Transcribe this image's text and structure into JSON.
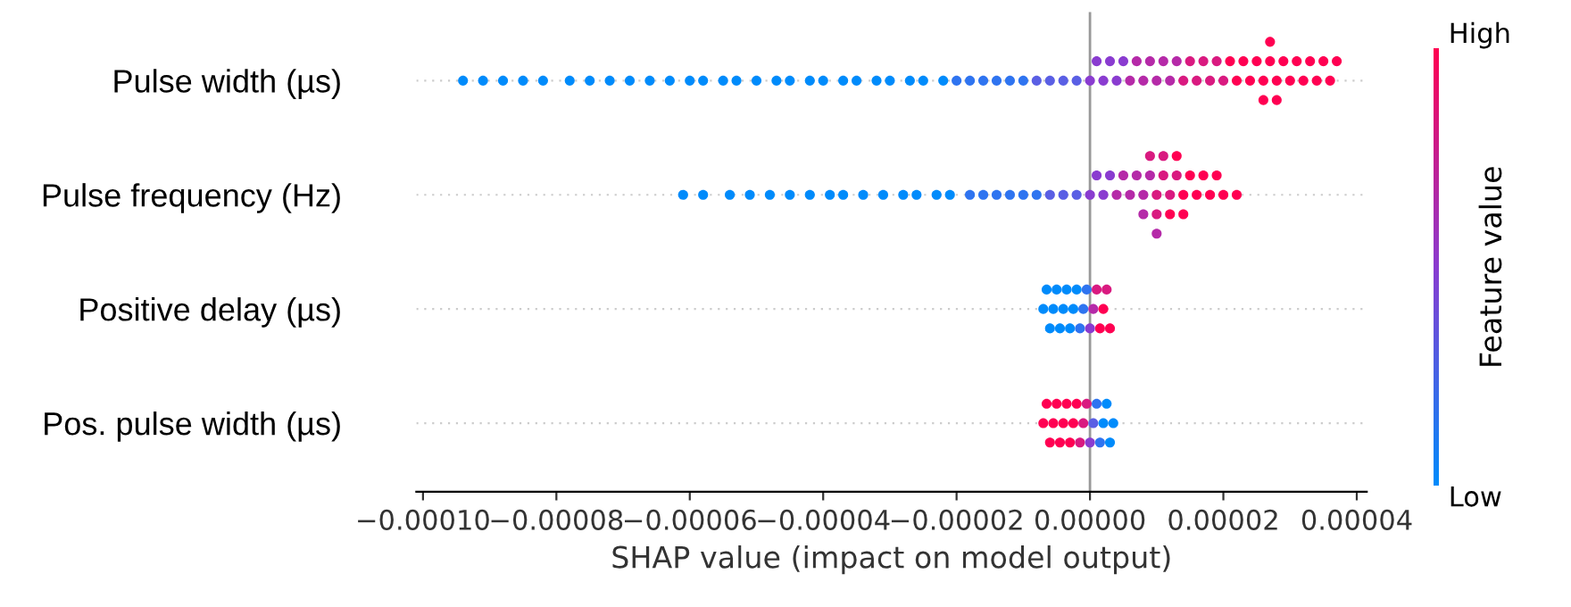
{
  "chart_data": {
    "type": "scatter",
    "orientation": "horizontal",
    "xlabel": "SHAP value (impact on model output)",
    "clabel": "Feature value",
    "categories": [
      "Pulse width (µs)",
      "Pulse frequency (Hz)",
      "Positive delay (µs)",
      "Pos. pulse width (µs)"
    ],
    "xlim": [
      -0.000101,
      4.15e-05
    ],
    "xticks": [
      {
        "value": -0.0001,
        "label": "−0.00010"
      },
      {
        "value": -8e-05,
        "label": "−0.00008"
      },
      {
        "value": -6e-05,
        "label": "−0.00006"
      },
      {
        "value": -4e-05,
        "label": "−0.00004"
      },
      {
        "value": -2e-05,
        "label": "−0.00002"
      },
      {
        "value": 0,
        "label": "0.00000"
      },
      {
        "value": 2e-05,
        "label": "0.00002"
      },
      {
        "value": 4e-05,
        "label": "0.00004"
      }
    ],
    "annotations": [
      "High",
      "Low"
    ],
    "grid": "y",
    "marker": "circle",
    "ref_lines": [
      {
        "axis": "x",
        "value": 0,
        "color": "#999999"
      }
    ],
    "series": [
      {
        "x": [
          "Pulse width (µs)",
          "Pulse width (µs)",
          "Pulse width (µs)",
          "Pulse width (µs)",
          "Pulse width (µs)",
          "Pulse width (µs)",
          "Pulse width (µs)",
          "Pulse width (µs)",
          "Pulse width (µs)",
          "Pulse width (µs)",
          "Pulse width (µs)",
          "Pulse width (µs)",
          "Pulse width (µs)",
          "Pulse width (µs)",
          "Pulse width (µs)",
          "Pulse width (µs)",
          "Pulse width (µs)",
          "Pulse width (µs)",
          "Pulse width (µs)",
          "Pulse width (µs)",
          "Pulse width (µs)",
          "Pulse width (µs)",
          "Pulse width (µs)",
          "Pulse width (µs)",
          "Pulse width (µs)",
          "Pulse width (µs)",
          "Pulse width (µs)",
          "Pulse width (µs)",
          "Pulse width (µs)",
          "Pulse width (µs)",
          "Pulse width (µs)",
          "Pulse width (µs)",
          "Pulse width (µs)",
          "Pulse width (µs)",
          "Pulse width (µs)",
          "Pulse width (µs)",
          "Pulse width (µs)",
          "Pulse width (µs)",
          "Pulse width (µs)",
          "Pulse width (µs)",
          "Pulse width (µs)",
          "Pulse width (µs)",
          "Pulse width (µs)",
          "Pulse width (µs)",
          "Pulse width (µs)",
          "Pulse width (µs)",
          "Pulse width (µs)",
          "Pulse width (µs)",
          "Pulse width (µs)",
          "Pulse width (µs)",
          "Pulse width (µs)",
          "Pulse width (µs)",
          "Pulse width (µs)",
          "Pulse width (µs)",
          "Pulse width (µs)",
          "Pulse width (µs)",
          "Pulse width (µs)",
          "Pulse width (µs)",
          "Pulse width (µs)",
          "Pulse width (µs)",
          "Pulse width (µs)",
          "Pulse width (µs)",
          "Pulse width (µs)",
          "Pulse width (µs)",
          "Pulse width (µs)",
          "Pulse width (µs)",
          "Pulse width (µs)",
          "Pulse width (µs)",
          "Pulse width (µs)",
          "Pulse width (µs)",
          "Pulse width (µs)",
          "Pulse width (µs)",
          "Pulse width (µs)",
          "Pulse width (µs)",
          "Pulse width (µs)",
          "Pulse width (µs)",
          "Pulse width (µs)",
          "Pulse width (µs)"
        ],
        "values": [
          -9.4e-05,
          -9.1e-05,
          -8.8e-05,
          -8.5e-05,
          -8.2e-05,
          -7.8e-05,
          -7.5e-05,
          -7.2e-05,
          -6.9e-05,
          -6.6e-05,
          -6.3e-05,
          -6e-05,
          -5.8e-05,
          -5.5e-05,
          -5.3e-05,
          -5e-05,
          -4.7e-05,
          -4.5e-05,
          -4.2e-05,
          -4e-05,
          -3.7e-05,
          -3.5e-05,
          -3.2e-05,
          -3e-05,
          -2.7e-05,
          -2.5e-05,
          -2.2e-05,
          -2e-05,
          -1.8e-05,
          -1.6e-05,
          -1.4e-05,
          -1.2e-05,
          -1e-05,
          -8e-06,
          -6e-06,
          -4e-06,
          -2e-06,
          0,
          1e-06,
          2e-06,
          3e-06,
          4e-06,
          5e-06,
          6e-06,
          7e-06,
          8e-06,
          9e-06,
          1e-05,
          1.1e-05,
          1.2e-05,
          1.3e-05,
          1.4e-05,
          1.5e-05,
          1.6e-05,
          1.7e-05,
          1.8e-05,
          1.9e-05,
          2e-05,
          2.1e-05,
          2.2e-05,
          2.3e-05,
          2.4e-05,
          2.5e-05,
          2.6e-05,
          2.6e-05,
          2.7e-05,
          2.7e-05,
          2.8e-05,
          2.8e-05,
          2.9e-05,
          3e-05,
          3.1e-05,
          3.2e-05,
          3.3e-05,
          3.4e-05,
          3.5e-05,
          3.6e-05,
          3.7e-05
        ],
        "colors": [
          "#008bfb",
          "#008bfb",
          "#008bfb",
          "#008bfb",
          "#008bfb",
          "#008bfb",
          "#008bfb",
          "#008bfb",
          "#008bfb",
          "#008bfb",
          "#008bfb",
          "#008bfb",
          "#008bfb",
          "#008bfb",
          "#008bfb",
          "#008bfb",
          "#008bfb",
          "#008bfb",
          "#008bfb",
          "#008bfb",
          "#008bfb",
          "#008bfb",
          "#008bfb",
          "#008bfb",
          "#008bfb",
          "#008bfb",
          "#008bfb",
          "#2f74f0",
          "#2f74f0",
          "#2f74f0",
          "#2f74f0",
          "#2f74f0",
          "#2f74f0",
          "#5a5fe4",
          "#5a5fe4",
          "#5a5fe4",
          "#5a5fe4",
          "#8a3cd0",
          "#8a3cd0",
          "#8a3cd0",
          "#8a3cd0",
          "#8a3cd0",
          "#8a3cd0",
          "#b52aa8",
          "#b52aa8",
          "#b52aa8",
          "#b52aa8",
          "#b52aa8",
          "#b52aa8",
          "#b52aa8",
          "#b52aa8",
          "#d91a80",
          "#d91a80",
          "#d91a80",
          "#d91a80",
          "#d91a80",
          "#d91a80",
          "#d91a80",
          "#ff0052",
          "#ff0052",
          "#ff0052",
          "#ff0052",
          "#ff0052",
          "#ff0052",
          "#ff0052",
          "#ff0052",
          "#ff0052",
          "#ff0052",
          "#ff0052",
          "#ff0052",
          "#ff0052",
          "#ff0052",
          "#ff0052",
          "#ff0052",
          "#ff0052",
          "#ff0052",
          "#ff0052",
          "#ff0052"
        ]
      },
      {
        "x": [
          "Pulse frequency (Hz)",
          "Pulse frequency (Hz)",
          "Pulse frequency (Hz)",
          "Pulse frequency (Hz)",
          "Pulse frequency (Hz)",
          "Pulse frequency (Hz)",
          "Pulse frequency (Hz)",
          "Pulse frequency (Hz)",
          "Pulse frequency (Hz)",
          "Pulse frequency (Hz)",
          "Pulse frequency (Hz)",
          "Pulse frequency (Hz)",
          "Pulse frequency (Hz)",
          "Pulse frequency (Hz)",
          "Pulse frequency (Hz)",
          "Pulse frequency (Hz)",
          "Pulse frequency (Hz)",
          "Pulse frequency (Hz)",
          "Pulse frequency (Hz)",
          "Pulse frequency (Hz)",
          "Pulse frequency (Hz)",
          "Pulse frequency (Hz)",
          "Pulse frequency (Hz)",
          "Pulse frequency (Hz)",
          "Pulse frequency (Hz)",
          "Pulse frequency (Hz)",
          "Pulse frequency (Hz)",
          "Pulse frequency (Hz)",
          "Pulse frequency (Hz)",
          "Pulse frequency (Hz)",
          "Pulse frequency (Hz)",
          "Pulse frequency (Hz)",
          "Pulse frequency (Hz)",
          "Pulse frequency (Hz)",
          "Pulse frequency (Hz)",
          "Pulse frequency (Hz)",
          "Pulse frequency (Hz)",
          "Pulse frequency (Hz)",
          "Pulse frequency (Hz)",
          "Pulse frequency (Hz)",
          "Pulse frequency (Hz)",
          "Pulse frequency (Hz)",
          "Pulse frequency (Hz)",
          "Pulse frequency (Hz)",
          "Pulse frequency (Hz)",
          "Pulse frequency (Hz)",
          "Pulse frequency (Hz)",
          "Pulse frequency (Hz)",
          "Pulse frequency (Hz)",
          "Pulse frequency (Hz)",
          "Pulse frequency (Hz)",
          "Pulse frequency (Hz)",
          "Pulse frequency (Hz)",
          "Pulse frequency (Hz)"
        ],
        "values": [
          -6.1e-05,
          -5.8e-05,
          -5.4e-05,
          -5.1e-05,
          -4.8e-05,
          -4.5e-05,
          -4.2e-05,
          -3.9e-05,
          -3.7e-05,
          -3.4e-05,
          -3.1e-05,
          -2.8e-05,
          -2.6e-05,
          -2.3e-05,
          -2.1e-05,
          -1.8e-05,
          -1.6e-05,
          -1.4e-05,
          -1.2e-05,
          -1e-05,
          -8e-06,
          -6e-06,
          -4e-06,
          -2e-06,
          0,
          1e-06,
          2e-06,
          3e-06,
          4e-06,
          5e-06,
          6e-06,
          7e-06,
          8e-06,
          8e-06,
          9e-06,
          9e-06,
          1e-05,
          1e-05,
          1.1e-05,
          1.1e-05,
          1.2e-05,
          1.2e-05,
          1.3e-05,
          1.3e-05,
          1.4e-05,
          1.4e-05,
          1.5e-05,
          1.6e-05,
          1.7e-05,
          1.8e-05,
          1.9e-05,
          2e-05,
          2.2e-05,
          1e-05
        ],
        "colors": [
          "#008bfb",
          "#008bfb",
          "#008bfb",
          "#008bfb",
          "#008bfb",
          "#008bfb",
          "#008bfb",
          "#008bfb",
          "#008bfb",
          "#008bfb",
          "#008bfb",
          "#008bfb",
          "#008bfb",
          "#008bfb",
          "#008bfb",
          "#2f74f0",
          "#2f74f0",
          "#2f74f0",
          "#2f74f0",
          "#2f74f0",
          "#2f74f0",
          "#5a5fe4",
          "#5a5fe4",
          "#5a5fe4",
          "#8a3cd0",
          "#8a3cd0",
          "#8a3cd0",
          "#8a3cd0",
          "#b52aa8",
          "#b52aa8",
          "#b52aa8",
          "#b52aa8",
          "#b52aa8",
          "#b52aa8",
          "#b52aa8",
          "#d91a80",
          "#d91a80",
          "#d91a80",
          "#d91a80",
          "#d91a80",
          "#d91a80",
          "#ff0052",
          "#d91a80",
          "#ff0052",
          "#ff0052",
          "#ff0052",
          "#ff0052",
          "#ff0052",
          "#ff0052",
          "#ff0052",
          "#ff0052",
          "#ff0052",
          "#ff0052",
          "#b52aa8"
        ]
      },
      {
        "x": [
          "Positive delay (µs)",
          "Positive delay (µs)",
          "Positive delay (µs)",
          "Positive delay (µs)",
          "Positive delay (µs)",
          "Positive delay (µs)",
          "Positive delay (µs)",
          "Positive delay (µs)",
          "Positive delay (µs)",
          "Positive delay (µs)",
          "Positive delay (µs)",
          "Positive delay (µs)",
          "Positive delay (µs)",
          "Positive delay (µs)",
          "Positive delay (µs)",
          "Positive delay (µs)",
          "Positive delay (µs)",
          "Positive delay (µs)",
          "Positive delay (µs)",
          "Positive delay (µs)",
          "Positive delay (µs)"
        ],
        "values": [
          -7e-06,
          -6.5e-06,
          -6e-06,
          -5.5e-06,
          -5e-06,
          -4.5e-06,
          -4e-06,
          -3.5e-06,
          -3e-06,
          -2.5e-06,
          -2e-06,
          -1.5e-06,
          -1e-06,
          -5e-07,
          0,
          5e-07,
          1e-06,
          1.5e-06,
          2e-06,
          2.5e-06,
          3e-06
        ],
        "colors": [
          "#008bfb",
          "#008bfb",
          "#008bfb",
          "#008bfb",
          "#008bfb",
          "#008bfb",
          "#008bfb",
          "#008bfb",
          "#008bfb",
          "#008bfb",
          "#008bfb",
          "#2f74f0",
          "#2f74f0",
          "#2f74f0",
          "#8a3cd0",
          "#b52aa8",
          "#d91a80",
          "#ff0052",
          "#ff0052",
          "#d91a80",
          "#ff0052"
        ]
      },
      {
        "x": [
          "Pos. pulse width (µs)",
          "Pos. pulse width (µs)",
          "Pos. pulse width (µs)",
          "Pos. pulse width (µs)",
          "Pos. pulse width (µs)",
          "Pos. pulse width (µs)",
          "Pos. pulse width (µs)",
          "Pos. pulse width (µs)",
          "Pos. pulse width (µs)",
          "Pos. pulse width (µs)",
          "Pos. pulse width (µs)",
          "Pos. pulse width (µs)",
          "Pos. pulse width (µs)",
          "Pos. pulse width (µs)",
          "Pos. pulse width (µs)",
          "Pos. pulse width (µs)",
          "Pos. pulse width (µs)",
          "Pos. pulse width (µs)",
          "Pos. pulse width (µs)",
          "Pos. pulse width (µs)",
          "Pos. pulse width (µs)",
          "Pos. pulse width (µs)"
        ],
        "values": [
          -7e-06,
          -6.5e-06,
          -6e-06,
          -5.5e-06,
          -5e-06,
          -4.5e-06,
          -4e-06,
          -3.5e-06,
          -3e-06,
          -2.5e-06,
          -2e-06,
          -1.5e-06,
          -1e-06,
          -5e-07,
          0,
          5e-07,
          1e-06,
          1.5e-06,
          2e-06,
          2.5e-06,
          3e-06,
          3.5e-06
        ],
        "colors": [
          "#ff0052",
          "#ff0052",
          "#ff0052",
          "#ff0052",
          "#ff0052",
          "#ff0052",
          "#ff0052",
          "#ff0052",
          "#ff0052",
          "#ff0052",
          "#ff0052",
          "#d91a80",
          "#d91a80",
          "#d91a80",
          "#8a3cd0",
          "#5a5fe4",
          "#2f74f0",
          "#2f74f0",
          "#008bfb",
          "#008bfb",
          "#008bfb",
          "#008bfb"
        ]
      }
    ]
  }
}
